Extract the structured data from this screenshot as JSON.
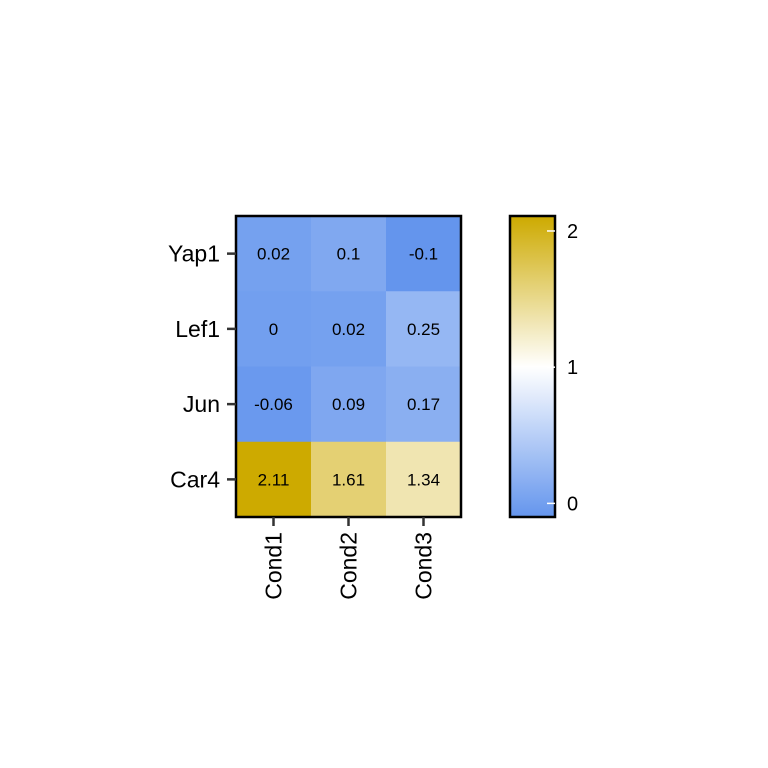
{
  "chart_data": {
    "type": "heatmap",
    "title": "",
    "xlabel": "",
    "ylabel": "",
    "rows": [
      "Yap1",
      "Lef1",
      "Jun",
      "Car4"
    ],
    "columns": [
      "Cond1",
      "Cond2",
      "Cond3"
    ],
    "values": [
      [
        0.02,
        0.1,
        -0.1
      ],
      [
        0,
        0.02,
        0.25
      ],
      [
        -0.06,
        0.09,
        0.17
      ],
      [
        2.11,
        1.61,
        1.34
      ]
    ],
    "cell_labels": [
      [
        "0.02",
        "0.1",
        "-0.1"
      ],
      [
        "0",
        "0.02",
        "0.25"
      ],
      [
        "-0.06",
        "0.09",
        "0.17"
      ],
      [
        "2.11",
        "1.61",
        "1.34"
      ]
    ],
    "colorscale": {
      "low_color": "#6495ED",
      "mid_color": "#FFFFFF",
      "high_color": "#CDAA00",
      "low_value": -0.1,
      "mid_value": 1,
      "high_value": 2.11
    },
    "legend": {
      "position": "right",
      "ticks": [
        0,
        1,
        2
      ],
      "tick_labels": [
        "0",
        "1",
        "2"
      ]
    }
  }
}
